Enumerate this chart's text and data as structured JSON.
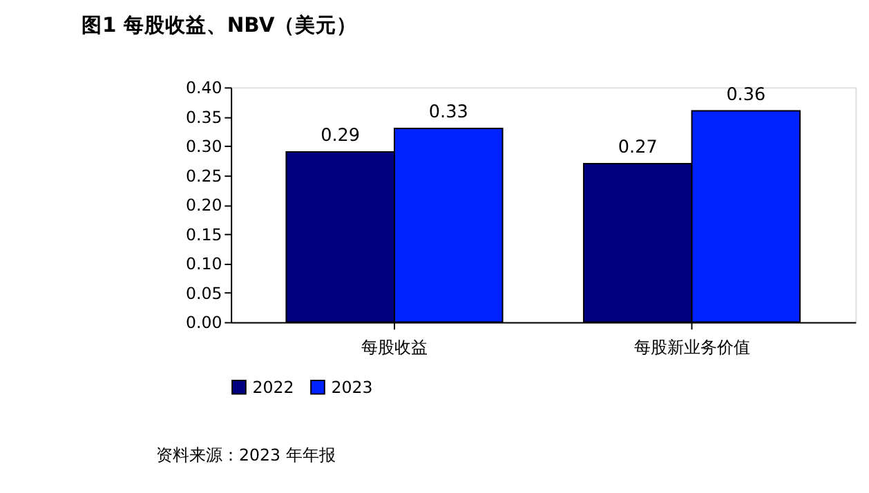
{
  "chart_data": {
    "type": "bar",
    "title": "图1  每股收益、NBV（美元）",
    "categories": [
      "每股收益",
      "每股新业务价值"
    ],
    "series": [
      {
        "name": "2022",
        "color": "#000080",
        "values": [
          0.29,
          0.27
        ]
      },
      {
        "name": "2023",
        "color": "#0022ff",
        "values": [
          0.33,
          0.36
        ]
      }
    ],
    "ylim": [
      0,
      0.4
    ],
    "yticks": [
      {
        "value": 0,
        "label": "0.00"
      },
      {
        "value": 0.05,
        "label": "0.05"
      },
      {
        "value": 0.1,
        "label": "0.10"
      },
      {
        "value": 0.15,
        "label": "0.15"
      },
      {
        "value": 0.2,
        "label": "0.20"
      },
      {
        "value": 0.25,
        "label": "0.25"
      },
      {
        "value": 0.3,
        "label": "0.30"
      },
      {
        "value": 0.35,
        "label": "0.35"
      },
      {
        "value": 0.4,
        "label": "0.40"
      }
    ],
    "data_labels": true,
    "grid": false,
    "legend": "bottom",
    "annotations": [
      "资料来源：2023 年年报"
    ]
  }
}
